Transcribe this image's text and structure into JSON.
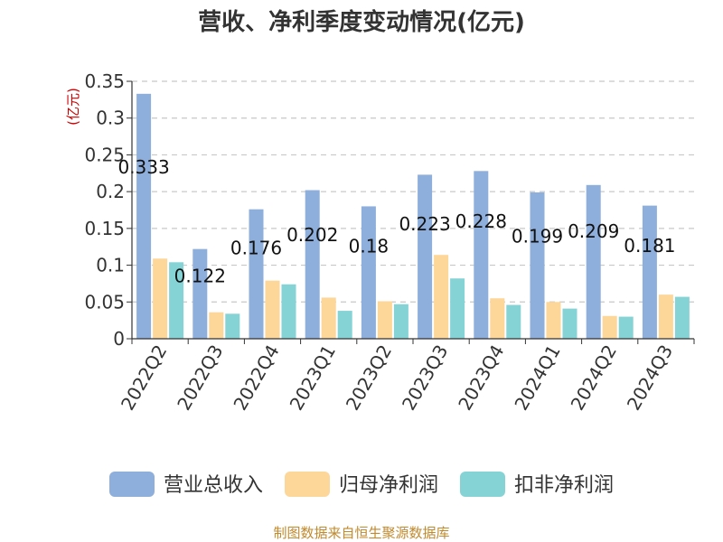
{
  "chart_data": {
    "type": "bar",
    "title": "营收、净利季度变动情况(亿元)",
    "ylabel": "(亿元)",
    "ylim": [
      0,
      0.35
    ],
    "yticks": [
      "0",
      "0.05",
      "0.1",
      "0.15",
      "0.2",
      "0.25",
      "0.3",
      "0.35"
    ],
    "categories": [
      "2022Q2",
      "2022Q3",
      "2022Q4",
      "2023Q1",
      "2023Q2",
      "2023Q3",
      "2023Q4",
      "2024Q1",
      "2024Q2",
      "2024Q3"
    ],
    "series": [
      {
        "name": "营业总收入",
        "color": "#8eaedb",
        "values": [
          0.333,
          0.122,
          0.176,
          0.202,
          0.18,
          0.223,
          0.228,
          0.199,
          0.209,
          0.181
        ],
        "labels": [
          "0.333",
          "0.122",
          "0.176",
          "0.202",
          "0.18",
          "0.223",
          "0.228",
          "0.199",
          "0.209",
          "0.181"
        ]
      },
      {
        "name": "归母净利润",
        "color": "#fdd799",
        "values": [
          0.109,
          0.036,
          0.079,
          0.056,
          0.051,
          0.114,
          0.055,
          0.05,
          0.031,
          0.06
        ]
      },
      {
        "name": "扣非净利润",
        "color": "#86d3d6",
        "values": [
          0.104,
          0.034,
          0.074,
          0.038,
          0.047,
          0.082,
          0.046,
          0.041,
          0.03,
          0.057
        ]
      }
    ],
    "grid": true,
    "legend": "bottom"
  },
  "footer": {
    "source": "制图数据来自恒生聚源数据库"
  }
}
